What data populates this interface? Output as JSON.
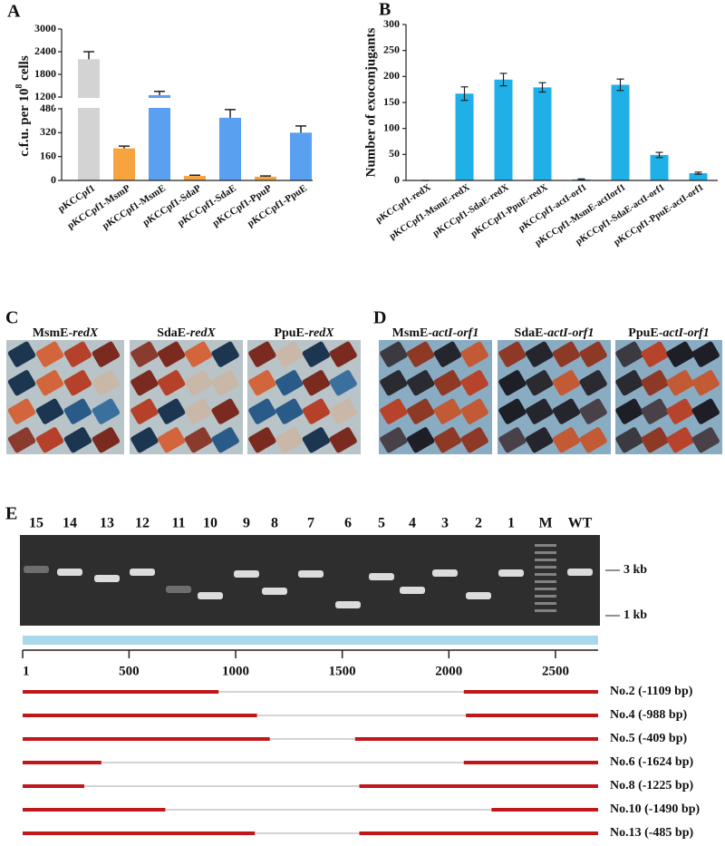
{
  "chart_data": [
    {
      "type": "bar-broken",
      "label": "A",
      "ylabel": [
        "c.f.u. per 10",
        "8",
        " cells"
      ],
      "categories": [
        "pKCCpf1",
        "pKCCpf1-MsmP",
        "pKCCpf1-MsmE",
        "pKCCpf1-SdaP",
        "pKCCpf1-SdaE",
        "pKCCpf1-PpuP",
        "pKCCpf1-PpuE"
      ],
      "values": [
        2200,
        215,
        1250,
        30,
        420,
        25,
        320
      ],
      "errors": [
        200,
        15,
        100,
        5,
        55,
        5,
        45
      ],
      "colors": [
        "#d3d3d3",
        "#f7a340",
        "#5aa0f0",
        "#f7a340",
        "#5aa0f0",
        "#f7a340",
        "#5aa0f0"
      ],
      "ylim": [
        0,
        3000
      ],
      "ybreak": [
        480,
        1200
      ],
      "yticks": [
        0,
        160,
        320,
        480,
        1200,
        1800,
        2400,
        3000
      ]
    },
    {
      "type": "bar",
      "label": "B",
      "ylabel": "Number of exoconjugants",
      "categories": [
        "pKCCpf1-redX",
        "pKCCpf1-MsmE-redX",
        "pKCCpf1-SdaE-redX",
        "pKCCpf1-PpuE-redX",
        "pKCCpf1-actI-orf1",
        "pKCCpf1-MsmE-actIorf1",
        "pKCCpf1-SdaE-actI-orf1",
        "pKCCpf1-PpuE-actI-orf1"
      ],
      "values": [
        0,
        167,
        194,
        179,
        2,
        184,
        49,
        14
      ],
      "errors": [
        0,
        13,
        12,
        9,
        1,
        11,
        5,
        2
      ],
      "color": "#1fb0e8",
      "ylim": [
        0,
        300
      ],
      "yticks": [
        0,
        50,
        100,
        150,
        200,
        250,
        300
      ]
    },
    {
      "type": "deletion-map",
      "xlim": [
        1,
        2700
      ],
      "xticks": [
        1,
        500,
        1000,
        1500,
        2000,
        2500
      ],
      "bar_color": "#a8d8ea",
      "series": [
        {
          "name": "No.2 (-1109 bp)",
          "color": "#c0171a",
          "segments": [
            [
              1,
              920
            ],
            [
              2070,
              2700
            ]
          ]
        },
        {
          "name": "No.4 (-988 bp)",
          "color": "#c0171a",
          "segments": [
            [
              1,
              1100
            ],
            [
              2080,
              2700
            ]
          ]
        },
        {
          "name": "No.5 (-409 bp)",
          "color": "#c0171a",
          "segments": [
            [
              1,
              1160
            ],
            [
              1560,
              2700
            ]
          ]
        },
        {
          "name": "No.6 (-1624 bp)",
          "color": "#c0171a",
          "segments": [
            [
              1,
              370
            ],
            [
              2070,
              2700
            ]
          ]
        },
        {
          "name": "No.8 (-1225 bp)",
          "color": "#c0171a",
          "segments": [
            [
              1,
              290
            ],
            [
              1580,
              2700
            ]
          ]
        },
        {
          "name": "No.10 (-1490 bp)",
          "color": "#c0171a",
          "segments": [
            [
              1,
              670
            ],
            [
              2200,
              2700
            ]
          ]
        },
        {
          "name": "No.13 (-485 bp)",
          "color": "#c0171a",
          "segments": [
            [
              1,
              1090
            ],
            [
              1580,
              2700
            ]
          ]
        }
      ]
    }
  ],
  "photo_panels": [
    {
      "label": "C",
      "photos": [
        {
          "strain": "MsmE-",
          "gene": "redX"
        },
        {
          "strain": "SdaE-",
          "gene": "redX"
        },
        {
          "strain": "PpuE-",
          "gene": "redX"
        }
      ]
    },
    {
      "label": "D",
      "photos": [
        {
          "strain": "MsmE-",
          "gene": "actI-orf1"
        },
        {
          "strain": "SdaE-",
          "gene": "actI-orf1"
        },
        {
          "strain": "PpuE-",
          "gene": "actI-orf1"
        }
      ]
    }
  ],
  "gel": {
    "label": "E",
    "lanes": [
      "15",
      "14",
      "13",
      "12",
      "11",
      "10",
      "9",
      "8",
      "7",
      "6",
      "5",
      "4",
      "3",
      "2",
      "1",
      "M",
      "WT"
    ],
    "markers": [
      "3 kb",
      "1 kb"
    ]
  }
}
